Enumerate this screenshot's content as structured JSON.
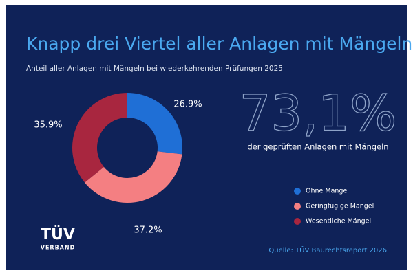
{
  "chart_data": {
    "type": "donut",
    "title": "Knapp drei Viertel aller Anlagen mit Mängeln",
    "subtitle": "Anteil aller Anlagen mit Mängeln bei wiederkehrenden Prüfungen 2025",
    "categories": [
      "Ohne Mängel",
      "Geringfügige Mängel",
      "Wesentliche Mängel"
    ],
    "values": [
      26.9,
      37.2,
      35.9
    ],
    "value_labels": [
      "26.9%",
      "37.2%",
      "35.9%"
    ],
    "colors": [
      "#1f6fd6",
      "#f47f82",
      "#a8263f"
    ],
    "highlight": "73,1%",
    "highlight_caption": "der geprüften Anlagen mit Mängeln",
    "source": "Quelle: TÜV Baurechtsreport 2026",
    "logo": {
      "brand": "TÜV",
      "sub": "VERBAND"
    }
  }
}
